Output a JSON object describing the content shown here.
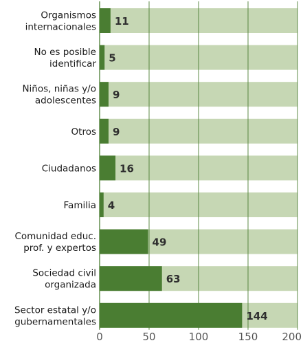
{
  "chart_data": {
    "type": "bar",
    "orientation": "horizontal",
    "categories": [
      [
        "Organismos",
        "internacionales"
      ],
      [
        "No es posible",
        "identificar"
      ],
      [
        "Niños, niñas y/o",
        "adolescentes"
      ],
      [
        "Otros"
      ],
      [
        "Ciudadanos"
      ],
      [
        "Familia"
      ],
      [
        "Comunidad educ.",
        "prof. y expertos"
      ],
      [
        "Sociedad civil",
        "organizada"
      ],
      [
        "Sector estatal y/o",
        "gubernamentales"
      ]
    ],
    "values": [
      11,
      5,
      9,
      9,
      16,
      4,
      49,
      63,
      144
    ],
    "data_labels": [
      "11",
      "5",
      "9",
      "9",
      "16",
      "4",
      "49",
      "63",
      "144"
    ],
    "xlim": [
      0,
      200
    ],
    "xticks": [
      0,
      50,
      100,
      150,
      200
    ],
    "xtick_labels": [
      "0",
      "50",
      "100",
      "150",
      "200"
    ],
    "title": "",
    "xlabel": "",
    "ylabel": "",
    "grid": true,
    "legend": "none",
    "colors": {
      "bar": "#4a7d32",
      "track": "#c6d7b4",
      "grid": "#4a7d32",
      "label_text": "#1a1a1a",
      "value_text": "#2f2f2f",
      "tick_text": "#555555"
    }
  }
}
